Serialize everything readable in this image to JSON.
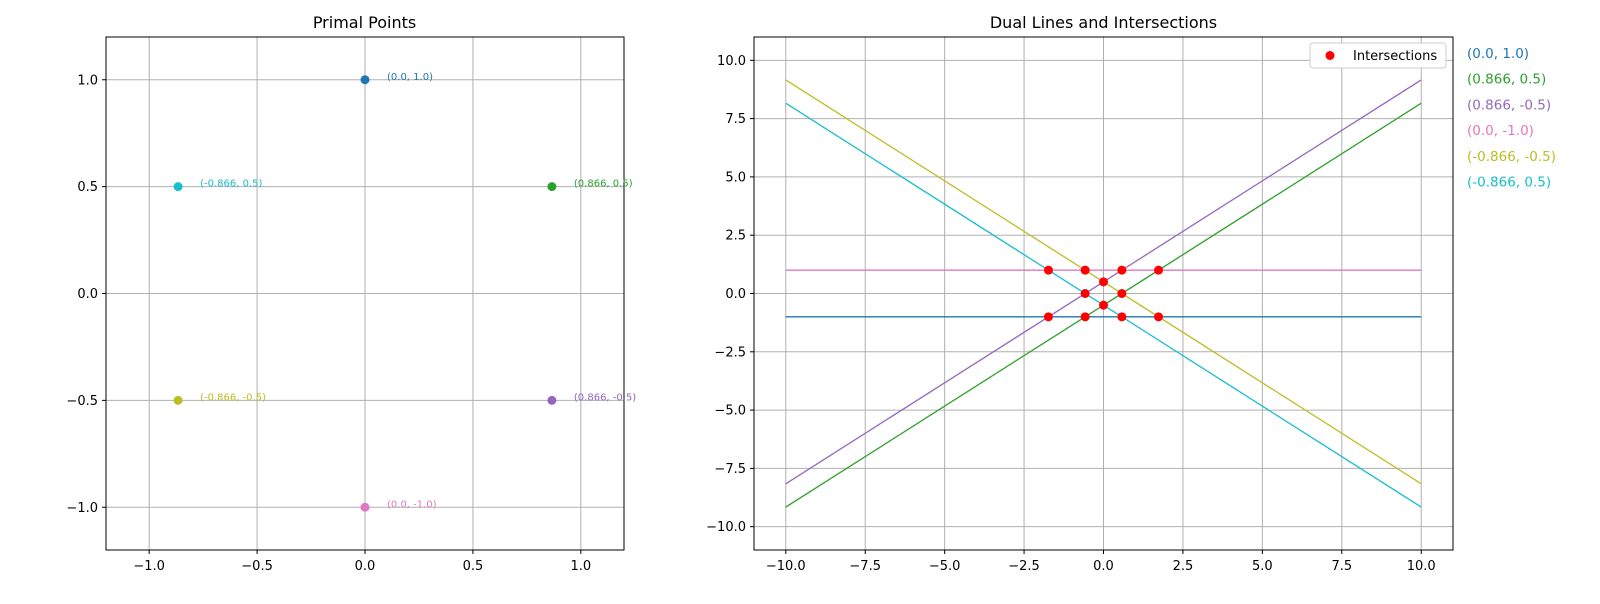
{
  "chart_data": [
    {
      "type": "scatter",
      "title": "Primal Points",
      "xlabel": "",
      "ylabel": "",
      "xlim": [
        -1.2,
        1.2
      ],
      "ylim": [
        -1.2,
        1.2
      ],
      "grid": true,
      "x_ticks": [
        -1.0,
        -0.5,
        0.0,
        0.5,
        1.0
      ],
      "y_ticks": [
        -1.0,
        -0.5,
        0.0,
        0.5,
        1.0
      ],
      "x_tick_labels": [
        "−1.0",
        "−0.5",
        "0.0",
        "0.5",
        "1.0"
      ],
      "y_tick_labels": [
        "−1.0",
        "−0.5",
        "0.0",
        "0.5",
        "1.0"
      ],
      "points": [
        {
          "x": 0.0,
          "y": 1.0,
          "label": "(0.0, 1.0)",
          "color": "#1f77b4"
        },
        {
          "x": 0.866,
          "y": 0.5,
          "label": "(0.866, 0.5)",
          "color": "#2ca02c"
        },
        {
          "x": 0.866,
          "y": -0.5,
          "label": "(0.866, -0.5)",
          "color": "#9467bd"
        },
        {
          "x": 0.0,
          "y": -1.0,
          "label": "(0.0, -1.0)",
          "color": "#e377c2"
        },
        {
          "x": -0.866,
          "y": -0.5,
          "label": "(-0.866, -0.5)",
          "color": "#bcbd22"
        },
        {
          "x": -0.866,
          "y": 0.5,
          "label": "(-0.866, 0.5)",
          "color": "#17becf"
        }
      ]
    },
    {
      "type": "line",
      "title": "Dual Lines and Intersections",
      "xlabel": "",
      "ylabel": "",
      "xlim": [
        -11,
        11
      ],
      "ylim": [
        -11,
        11
      ],
      "grid": true,
      "x_ticks": [
        -10.0,
        -7.5,
        -5.0,
        -2.5,
        0.0,
        2.5,
        5.0,
        7.5,
        10.0
      ],
      "y_ticks": [
        -10.0,
        -7.5,
        -5.0,
        -2.5,
        0.0,
        2.5,
        5.0,
        7.5,
        10.0
      ],
      "x_tick_labels": [
        "−10.0",
        "−7.5",
        "−5.0",
        "−2.5",
        "0.0",
        "2.5",
        "5.0",
        "7.5",
        "10.0"
      ],
      "y_tick_labels": [
        "−10.0",
        "−7.5",
        "−5.0",
        "−2.5",
        "0.0",
        "2.5",
        "5.0",
        "7.5",
        "10.0"
      ],
      "x_domain": [
        -10,
        10
      ],
      "series": [
        {
          "name": "(0.0, 1.0)",
          "slope": 0.0,
          "intercept": -1.0,
          "color": "#1f77b4"
        },
        {
          "name": "(0.866, 0.5)",
          "slope": 0.866,
          "intercept": -0.5,
          "color": "#2ca02c"
        },
        {
          "name": "(0.866, -0.5)",
          "slope": 0.866,
          "intercept": 0.5,
          "color": "#9467bd"
        },
        {
          "name": "(0.0, -1.0)",
          "slope": 0.0,
          "intercept": 1.0,
          "color": "#e377c2"
        },
        {
          "name": "(-0.866, -0.5)",
          "slope": -0.866,
          "intercept": 0.5,
          "color": "#bcbd22"
        },
        {
          "name": "(-0.866, 0.5)",
          "slope": -0.866,
          "intercept": -0.5,
          "color": "#17becf"
        }
      ],
      "intersections": {
        "name": "Intersections",
        "color": "#ff0000",
        "points": [
          {
            "x": -1.732,
            "y": 1.0
          },
          {
            "x": -0.577,
            "y": 1.0
          },
          {
            "x": 0.577,
            "y": 1.0
          },
          {
            "x": 1.732,
            "y": 1.0
          },
          {
            "x": 0.0,
            "y": 0.5
          },
          {
            "x": -0.577,
            "y": 0.0
          },
          {
            "x": 0.577,
            "y": 0.0
          },
          {
            "x": 0.0,
            "y": -0.5
          },
          {
            "x": -1.732,
            "y": -1.0
          },
          {
            "x": -0.577,
            "y": -1.0
          },
          {
            "x": 0.577,
            "y": -1.0
          },
          {
            "x": 1.732,
            "y": -1.0
          }
        ]
      },
      "legend": {
        "placement": "top-right",
        "entries": [
          "Intersections"
        ]
      },
      "side_labels": [
        "(0.0, 1.0)",
        "(0.866, 0.5)",
        "(0.866, -0.5)",
        "(0.0, -1.0)",
        "(-0.866, -0.5)",
        "(-0.866, 0.5)"
      ]
    }
  ]
}
